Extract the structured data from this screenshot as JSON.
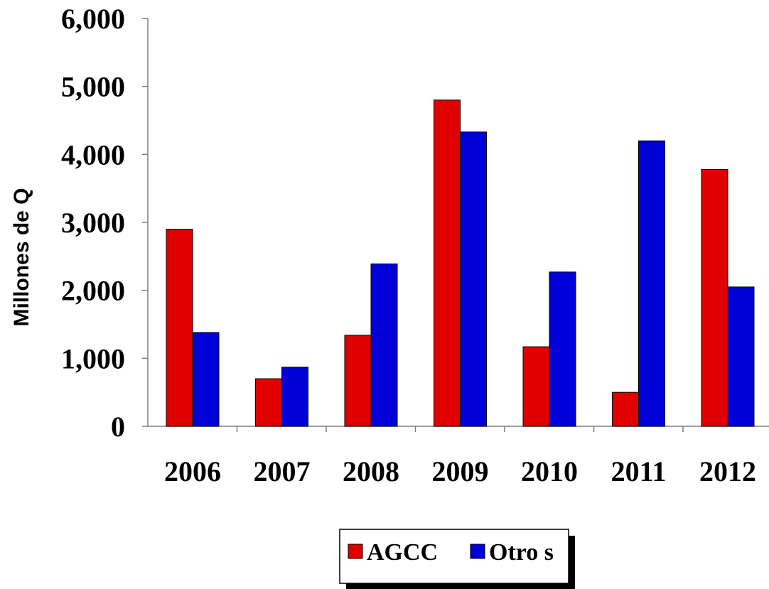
{
  "chart_data": {
    "type": "bar",
    "title": "",
    "xlabel": "",
    "ylabel": "Millones de Q",
    "ylim": [
      0,
      6000
    ],
    "yticks": [
      0,
      1000,
      2000,
      3000,
      4000,
      5000,
      6000
    ],
    "ytick_labels": [
      "0",
      "1,000",
      "2,000",
      "3,000",
      "4,000",
      "5,000",
      "6,000"
    ],
    "categories": [
      "2006",
      "2007",
      "2008",
      "2009",
      "2010",
      "2011",
      "2012"
    ],
    "series": [
      {
        "name": "AGCC",
        "color": "#e00000",
        "values": [
          2900,
          700,
          1340,
          4800,
          1170,
          500,
          3780
        ]
      },
      {
        "name": "Otro s",
        "color": "#0000d8",
        "values": [
          1380,
          870,
          2390,
          4330,
          2270,
          4200,
          2050
        ]
      }
    ],
    "grid": false,
    "legend_position": "bottom-center"
  }
}
